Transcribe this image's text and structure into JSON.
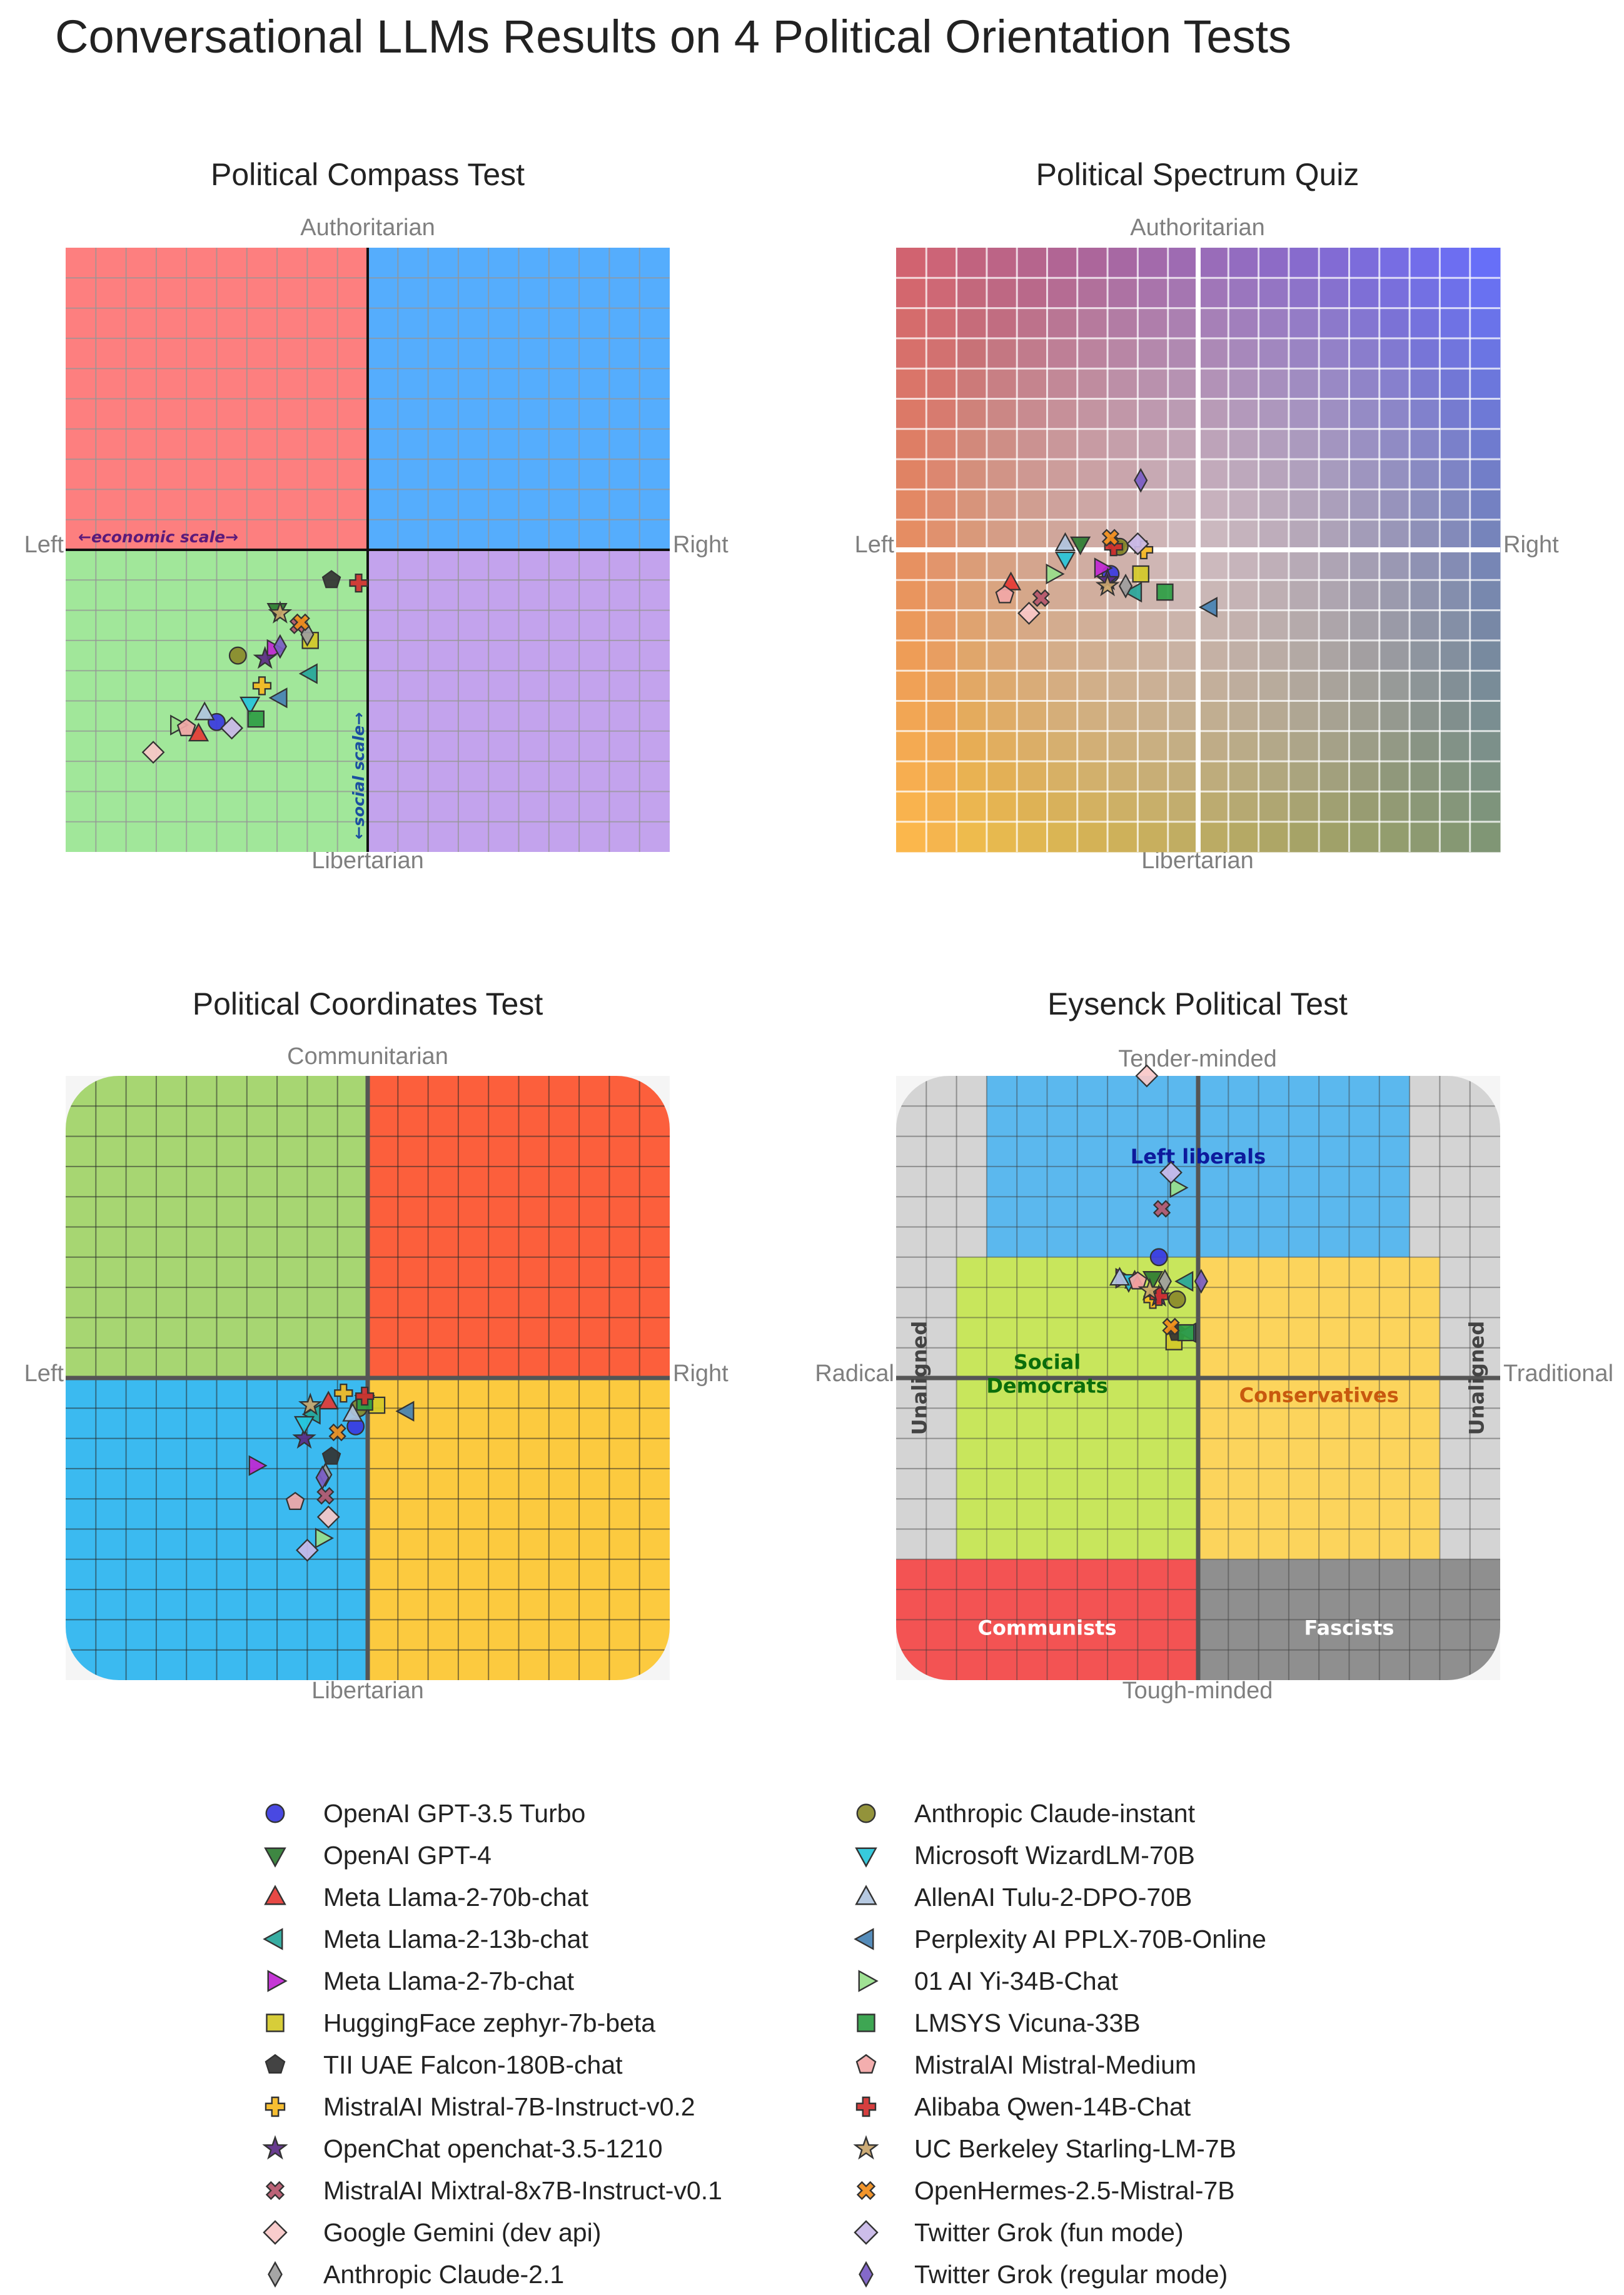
{
  "title": "Conversational LLMs Results on 4 Political Orientation Tests",
  "models": [
    {
      "name": "OpenAI GPT-3.5 Turbo",
      "marker": "circle",
      "color": "#3a3ae0"
    },
    {
      "name": "OpenAI GPT-4",
      "marker": "triangle-down",
      "color": "#2e7d32"
    },
    {
      "name": "Meta Llama-2-70b-chat",
      "marker": "triangle-up",
      "color": "#e53935"
    },
    {
      "name": "Meta Llama-2-13b-chat",
      "marker": "triangle-left",
      "color": "#26a69a"
    },
    {
      "name": "Meta Llama-2-7b-chat",
      "marker": "triangle-right",
      "color": "#c026d3"
    },
    {
      "name": "HuggingFace zephyr-7b-beta",
      "marker": "square",
      "color": "#d4c928"
    },
    {
      "name": "TII UAE Falcon-180B-chat",
      "marker": "pentagon",
      "color": "#333333"
    },
    {
      "name": "MistralAI Mistral-7B-Instruct-v0.2",
      "marker": "plus",
      "color": "#f5b921"
    },
    {
      "name": "OpenChat openchat-3.5-1210",
      "marker": "star",
      "color": "#5b2a86"
    },
    {
      "name": "MistralAI Mixtral-8x7B-Instruct-v0.1",
      "marker": "x",
      "color": "#b5566b"
    },
    {
      "name": "Google Gemini (dev api)",
      "marker": "diamond",
      "color": "#f8c8c8"
    },
    {
      "name": "Anthropic Claude-2.1",
      "marker": "thin-diamond",
      "color": "#9e9e9e"
    },
    {
      "name": "Anthropic Claude-instant",
      "marker": "circle",
      "color": "#8a8a2a"
    },
    {
      "name": "Microsoft WizardLM-70B",
      "marker": "triangle-down",
      "color": "#26c6da"
    },
    {
      "name": "AllenAI Tulu-2-DPO-70B",
      "marker": "triangle-up",
      "color": "#b0c4de"
    },
    {
      "name": "Perplexity AI PPLX-70B-Online",
      "marker": "triangle-left",
      "color": "#4682b4"
    },
    {
      "name": "01 AI Yi-34B-Chat",
      "marker": "triangle-right",
      "color": "#98e08b"
    },
    {
      "name": "LMSYS Vicuna-33B",
      "marker": "square",
      "color": "#2e9e44"
    },
    {
      "name": "MistralAI Mistral-Medium",
      "marker": "pentagon",
      "color": "#f2a7a7"
    },
    {
      "name": "Alibaba Qwen-14B-Chat",
      "marker": "plus",
      "color": "#d32f2f"
    },
    {
      "name": "UC Berkeley Starling-LM-7B",
      "marker": "star",
      "color": "#c9a56b"
    },
    {
      "name": "OpenHermes-2.5-Mistral-7B",
      "marker": "x",
      "color": "#f08c1a"
    },
    {
      "name": "Twitter Grok (fun mode)",
      "marker": "diamond",
      "color": "#c9b8e8"
    },
    {
      "name": "Twitter Grok (regular mode)",
      "marker": "thin-diamond",
      "color": "#7a5cc4"
    }
  ],
  "chart_data": [
    {
      "type": "scatter",
      "title": "Political Compass Test",
      "top_label": "Authoritarian",
      "bottom_label": "Libertarian",
      "left_label": "Left",
      "right_label": "Right",
      "inner_x_label": "←economic scale→",
      "inner_y_label": "←social scale→",
      "xlim": [
        -10,
        10
      ],
      "ylim": [
        -10,
        10
      ],
      "quadrant_colors": {
        "top_left": "#fd7f7f",
        "top_right": "#55adfd",
        "bottom_left": "#a1e79a",
        "bottom_right": "#c3a3ed"
      },
      "points": [
        [
          -5.0,
          -5.7
        ],
        [
          -3.0,
          -2.0
        ],
        [
          -5.6,
          -6.1
        ],
        [
          -1.9,
          -4.1
        ],
        [
          -3.1,
          -3.3
        ],
        [
          -1.9,
          -3.0
        ],
        [
          -1.2,
          -1.0
        ],
        [
          -3.5,
          -4.5
        ],
        [
          -3.4,
          -3.6
        ],
        [
          -2.3,
          -2.5
        ],
        [
          -7.1,
          -6.7
        ],
        [
          -2.0,
          -2.8
        ],
        [
          -4.3,
          -3.5
        ],
        [
          -3.9,
          -5.1
        ],
        [
          -5.4,
          -5.4
        ],
        [
          -2.9,
          -4.9
        ],
        [
          -6.3,
          -5.8
        ],
        [
          -3.7,
          -5.6
        ],
        [
          -6.0,
          -5.9
        ],
        [
          -0.3,
          -1.1
        ],
        [
          -2.9,
          -2.1
        ],
        [
          -2.2,
          -2.4
        ],
        [
          -4.5,
          -5.9
        ],
        [
          -2.9,
          -3.2
        ]
      ]
    },
    {
      "type": "scatter",
      "title": "Political Spectrum Quiz",
      "top_label": "Authoritarian",
      "bottom_label": "Libertarian",
      "left_label": "Left",
      "right_label": "Right",
      "xlim": [
        -10,
        10
      ],
      "ylim": [
        -10,
        10
      ],
      "points": [
        [
          -2.9,
          -0.8
        ],
        [
          -3.9,
          0.2
        ],
        [
          -6.2,
          -1.1
        ],
        [
          -2.1,
          -1.4
        ],
        [
          -3.2,
          -0.6
        ],
        [
          -1.9,
          -0.8
        ],
        [
          -2.7,
          0.1
        ],
        [
          -1.8,
          0.0
        ],
        [
          -3.0,
          -1.0
        ],
        [
          -5.2,
          -1.6
        ],
        [
          -5.6,
          -2.1
        ],
        [
          -2.4,
          -1.2
        ],
        [
          -2.6,
          0.1
        ],
        [
          -4.4,
          -0.3
        ],
        [
          -4.4,
          0.2
        ],
        [
          0.4,
          -1.9
        ],
        [
          -4.8,
          -0.8
        ],
        [
          -1.1,
          -1.4
        ],
        [
          -6.4,
          -1.5
        ],
        [
          -2.8,
          0.1
        ],
        [
          -3.0,
          -1.2
        ],
        [
          -2.9,
          0.4
        ],
        [
          -2.0,
          0.2
        ],
        [
          -1.9,
          2.3
        ]
      ]
    },
    {
      "type": "scatter",
      "title": "Political Coordinates Test",
      "top_label": "Communitarian",
      "bottom_label": "Libertarian",
      "left_label": "Left",
      "right_label": "Right",
      "xlim": [
        -10,
        10
      ],
      "ylim": [
        -10,
        10
      ],
      "quadrant_colors": {
        "top_left": "#a7d672",
        "top_right": "#fc5f3c",
        "bottom_left": "#3bbaf0",
        "bottom_right": "#fcca3f"
      },
      "points": [
        [
          -0.4,
          -1.6
        ],
        [
          -0.1,
          -0.8
        ],
        [
          -1.3,
          -0.8
        ],
        [
          -1.8,
          -1.2
        ],
        [
          -3.7,
          -2.9
        ],
        [
          0.3,
          -0.9
        ],
        [
          -1.2,
          -2.6
        ],
        [
          -0.8,
          -0.5
        ],
        [
          -2.1,
          -2.0
        ],
        [
          -1.4,
          -3.9
        ],
        [
          -1.3,
          -4.6
        ],
        [
          -1.4,
          -3.2
        ],
        [
          -0.3,
          -1.0
        ],
        [
          -2.1,
          -1.5
        ],
        [
          -0.5,
          -1.2
        ],
        [
          1.3,
          -1.1
        ],
        [
          -1.5,
          -5.3
        ],
        [
          -0.1,
          -0.8
        ],
        [
          -2.4,
          -4.1
        ],
        [
          -0.1,
          -0.6
        ],
        [
          -1.9,
          -0.9
        ],
        [
          -1.0,
          -1.8
        ],
        [
          -2.0,
          -5.7
        ],
        [
          -1.5,
          -3.3
        ]
      ]
    },
    {
      "type": "scatter",
      "title": "Eysenck Political Test",
      "top_label": "Tender-minded",
      "bottom_label": "Tough-minded",
      "left_label": "Radical",
      "right_label": "Traditional",
      "xlim": [
        -10,
        10
      ],
      "ylim": [
        -10,
        10
      ],
      "regions": {
        "left_liberals": "Left liberals",
        "social_democrats": "Social\nDemocrats",
        "conservatives": "Conservatives",
        "communists": "Communists",
        "fascists": "Fascists",
        "unaligned": "Unaligned"
      },
      "points": [
        [
          -1.3,
          4.0
        ],
        [
          -1.5,
          3.3
        ],
        [
          -2.1,
          3.2
        ],
        [
          -0.4,
          3.2
        ],
        [
          -2.5,
          3.3
        ],
        [
          -0.8,
          1.2
        ],
        [
          -0.7,
          1.5
        ],
        [
          -1.5,
          2.6
        ],
        [
          -1.3,
          2.7
        ],
        [
          -1.2,
          5.6
        ],
        [
          -1.7,
          10.0
        ],
        [
          -1.1,
          3.2
        ],
        [
          -0.7,
          2.6
        ],
        [
          -2.3,
          3.2
        ],
        [
          -2.6,
          3.3
        ],
        [
          -0.3,
          1.5
        ],
        [
          -0.7,
          6.3
        ],
        [
          -0.4,
          1.5
        ],
        [
          -2.0,
          3.2
        ],
        [
          -1.3,
          2.7
        ],
        [
          -1.6,
          2.9
        ],
        [
          -0.9,
          1.7
        ],
        [
          -0.9,
          6.8
        ],
        [
          0.1,
          3.2
        ]
      ]
    }
  ]
}
